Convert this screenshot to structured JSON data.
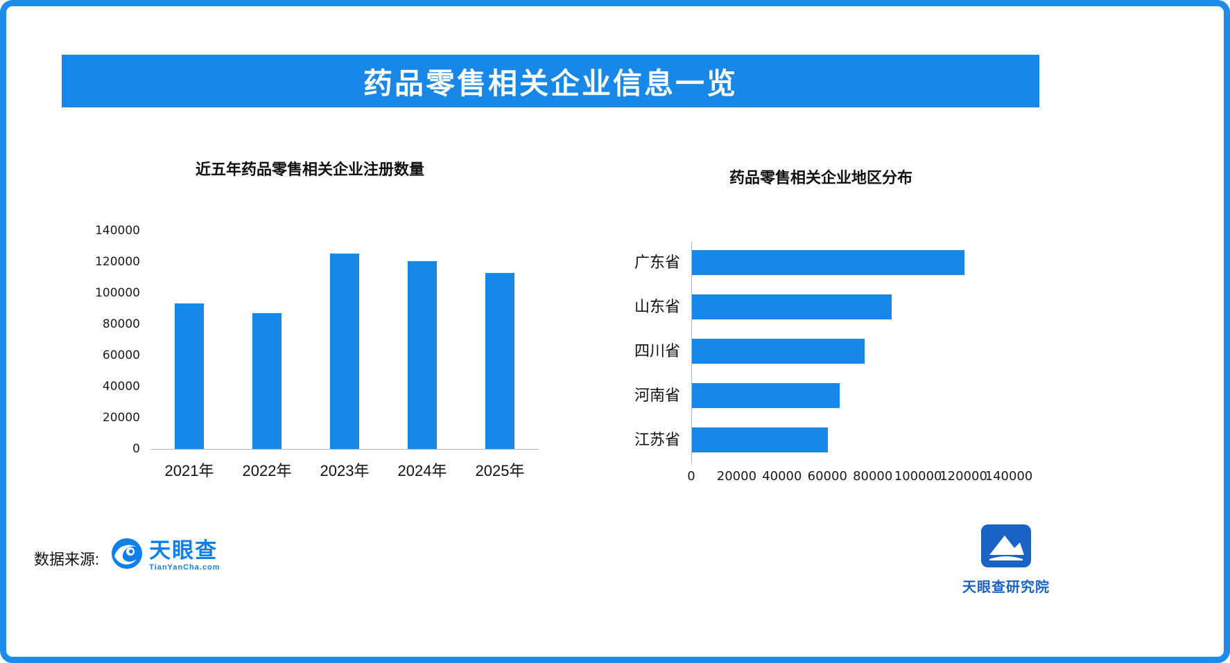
{
  "page": {
    "title": "药品零售相关企业信息一览",
    "accent_color": "#1787e8",
    "border_color": "#1e8ceb"
  },
  "footer": {
    "source_label": "数据来源:",
    "tianyancha": {
      "name": "天眼查",
      "domain": "TianYanCha.com"
    },
    "institute": "天眼查研究院"
  },
  "chart_data": [
    {
      "type": "bar",
      "title": "近五年药品零售相关企业注册数量",
      "categories": [
        "2021年",
        "2022年",
        "2023年",
        "2024年",
        "2025年"
      ],
      "values": [
        93500,
        87000,
        125500,
        120500,
        113000
      ],
      "ylim": [
        0,
        140000
      ],
      "yticks": [
        0,
        20000,
        40000,
        60000,
        80000,
        100000,
        120000,
        140000
      ],
      "xlabel": "",
      "ylabel": "",
      "grid": false,
      "legend": "none",
      "bar_color": "#1787e8"
    },
    {
      "type": "bar-horizontal",
      "title": "药品零售相关企业地区分布",
      "categories": [
        "广东省",
        "山东省",
        "四川省",
        "河南省",
        "江苏省"
      ],
      "values": [
        120000,
        88000,
        76000,
        65000,
        60000
      ],
      "xlim": [
        0,
        140000
      ],
      "xticks": [
        0,
        20000,
        40000,
        60000,
        80000,
        100000,
        120000,
        140000
      ],
      "xlabel": "",
      "ylabel": "",
      "grid": false,
      "legend": "none",
      "bar_color": "#1787e8"
    }
  ]
}
